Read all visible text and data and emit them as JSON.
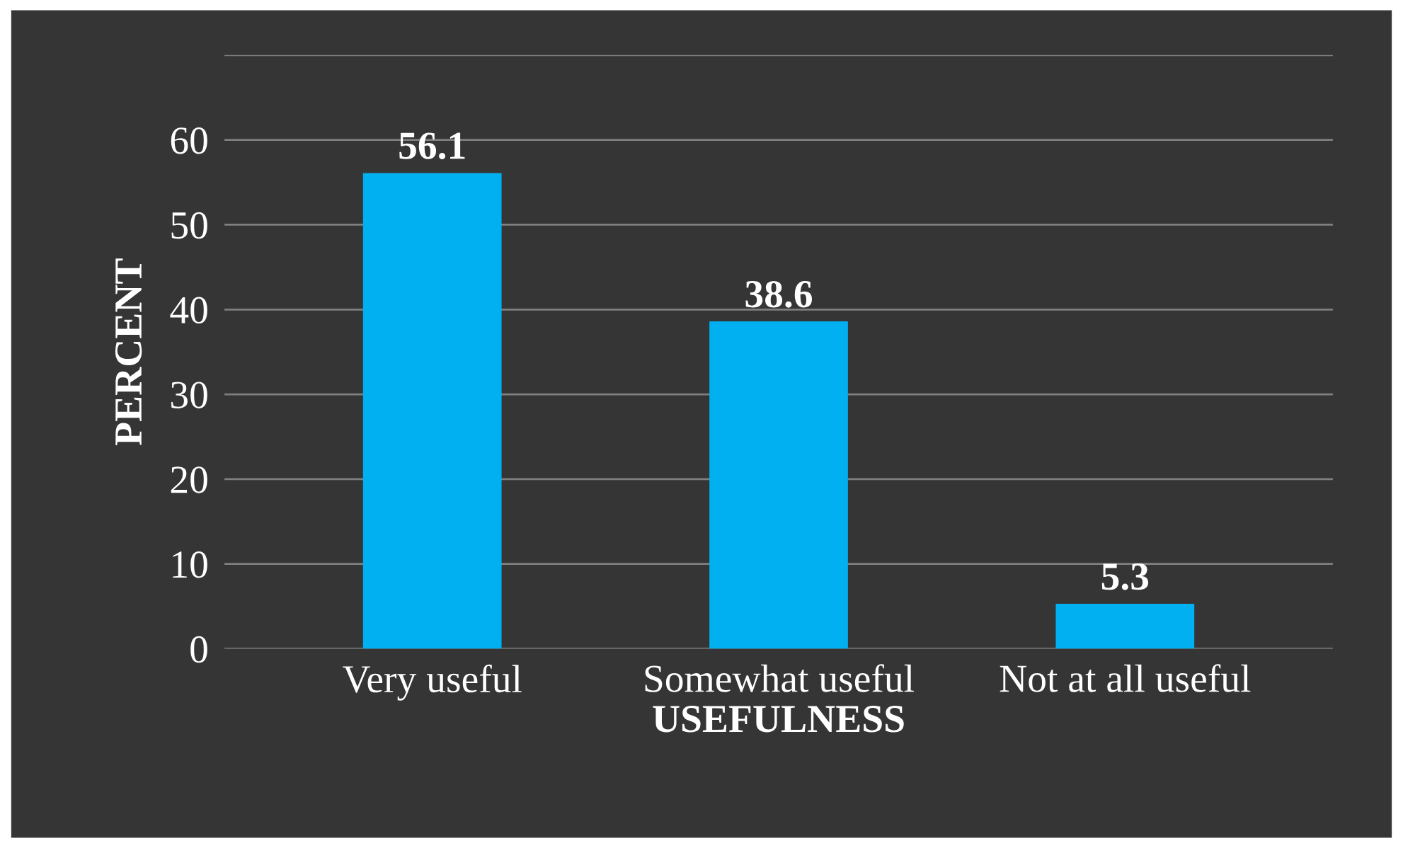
{
  "chart_data": {
    "type": "bar",
    "categories": [
      "Very useful",
      "Somewhat useful",
      "Not at all useful"
    ],
    "values": [
      56.1,
      38.6,
      5.3
    ],
    "color": "#00b0f0",
    "xlabel": "USEFULNESS",
    "ylabel": "PERCENT",
    "ylim": [
      0,
      70
    ],
    "yticks": [
      0,
      10,
      20,
      30,
      40,
      50,
      60,
      {
        "value": 70,
        "label": null
      }
    ],
    "grid": "y",
    "data_labels": true
  }
}
